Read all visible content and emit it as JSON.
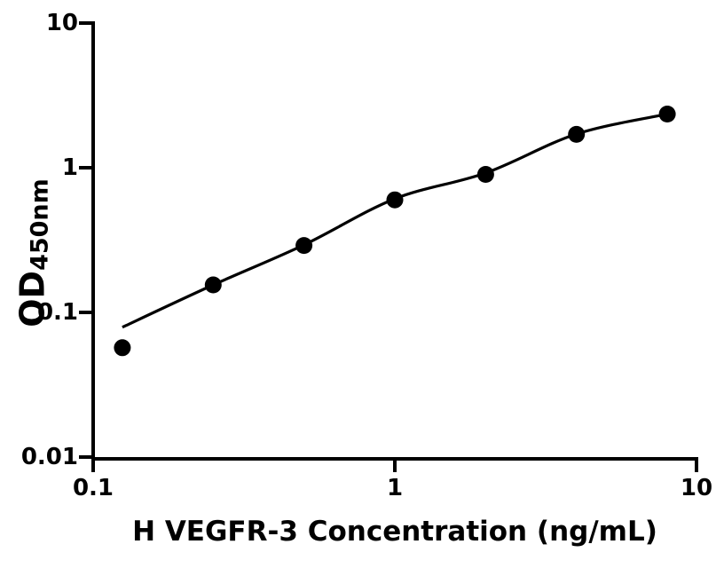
{
  "figure": {
    "background": "#ffffff",
    "ink_color": "#000000"
  },
  "chart_data": {
    "type": "scatter",
    "title": "",
    "xlabel": "H VEGFR-3 Concentration (ng/mL)",
    "ylabel": "OD",
    "ylabel_subscript": "450nm",
    "x_scale": "log",
    "y_scale": "log",
    "xlim": [
      0.1,
      10
    ],
    "ylim": [
      0.01,
      10
    ],
    "grid": false,
    "legend": null,
    "x_ticks": [
      {
        "value": 0.1,
        "label": "0.1"
      },
      {
        "value": 1,
        "label": "1"
      },
      {
        "value": 10,
        "label": "10"
      }
    ],
    "y_ticks": [
      {
        "value": 10,
        "label": "10"
      },
      {
        "value": 1,
        "label": "1"
      },
      {
        "value": 0.1,
        "label": "0.1"
      },
      {
        "value": 0.01,
        "label": "0.01"
      }
    ],
    "series": [
      {
        "name": "standard-points",
        "type": "scatter",
        "marker": "filled-circle",
        "color": "#000000",
        "x": [
          0.125,
          0.25,
          0.5,
          1,
          2,
          4,
          8
        ],
        "y": [
          0.057,
          0.155,
          0.29,
          0.6,
          0.9,
          1.7,
          2.35
        ]
      },
      {
        "name": "4pl-fit-curve",
        "type": "line",
        "color": "#000000",
        "x": [
          0.125,
          0.25,
          0.5,
          1,
          2,
          4,
          8
        ],
        "y": [
          0.079,
          0.155,
          0.293,
          0.61,
          0.92,
          1.71,
          2.35
        ]
      }
    ]
  }
}
